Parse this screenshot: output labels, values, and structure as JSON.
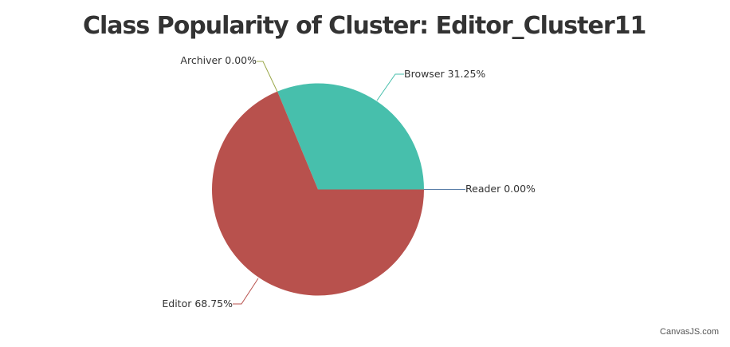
{
  "chart_data": {
    "type": "pie",
    "title": "Class Popularity of Cluster: Editor_Cluster11",
    "slices": [
      {
        "label": "Browser",
        "value": 31.25,
        "display": "31.25%",
        "color": "#47BFAC"
      },
      {
        "label": "Reader",
        "value": 0.0,
        "display": "0.00%",
        "color": "#5B7FA8"
      },
      {
        "label": "Editor",
        "value": 68.75,
        "display": "68.75%",
        "color": "#B8514D"
      },
      {
        "label": "Archiver",
        "value": 0.0,
        "display": "0.00%",
        "color": "#9BA84A"
      }
    ],
    "legend": "none"
  },
  "credit": "CanvasJS.com"
}
